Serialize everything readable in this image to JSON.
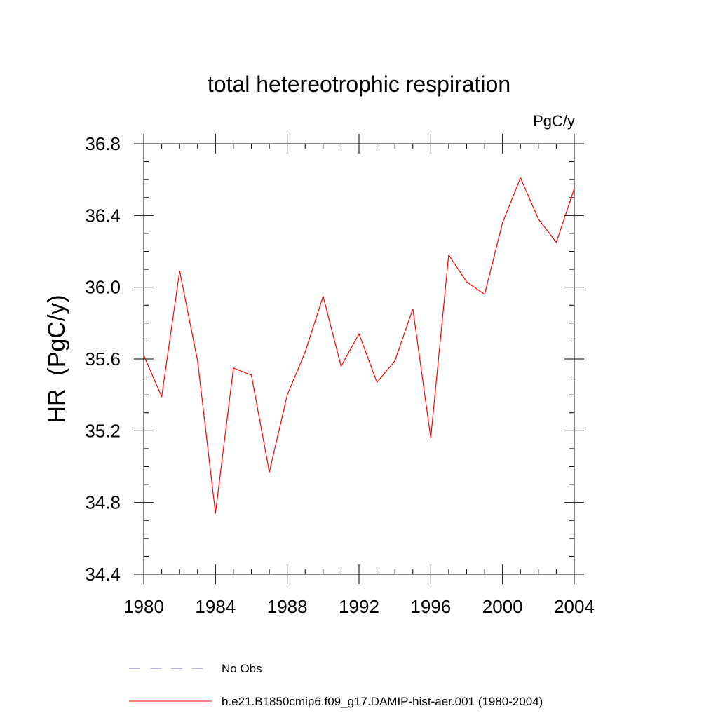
{
  "chart_data": {
    "type": "line",
    "title": "total hetereotrophic respiration",
    "units": "PgC/y",
    "xlabel": "",
    "ylabel": "HR  (PgC/y)",
    "xlim": [
      1980,
      2004
    ],
    "ylim": [
      34.4,
      36.8
    ],
    "x_ticks": [
      1980,
      1984,
      1988,
      1992,
      1996,
      2000,
      2004
    ],
    "x_tick_labels": [
      "1980",
      "1984",
      "1988",
      "1992",
      "1996",
      "2000",
      "2004"
    ],
    "y_ticks": [
      34.4,
      34.8,
      35.2,
      35.6,
      36.0,
      36.4,
      36.8
    ],
    "y_tick_labels": [
      "34.4",
      "34.8",
      "35.2",
      "35.6",
      "36.0",
      "36.4",
      "36.8"
    ],
    "x_minor_step": 1,
    "y_minor_step": 0.1,
    "grid": false,
    "legend_placement": "bottom",
    "series": [
      {
        "name": "b.e21.B1850cmip6.f09_g17.DAMIP-hist-aer.001 (1980-2004)",
        "color": "#ff0000",
        "dash": "solid",
        "x": [
          1980,
          1981,
          1982,
          1983,
          1984,
          1985,
          1986,
          1987,
          1988,
          1989,
          1990,
          1991,
          1992,
          1993,
          1994,
          1995,
          1996,
          1997,
          1998,
          1999,
          2000,
          2001,
          2002,
          2003,
          2004
        ],
        "values": [
          35.62,
          35.39,
          36.09,
          35.59,
          34.74,
          35.55,
          35.51,
          34.97,
          35.4,
          35.64,
          35.95,
          35.56,
          35.74,
          35.47,
          35.59,
          35.88,
          35.16,
          36.18,
          36.03,
          35.96,
          36.36,
          36.61,
          36.38,
          36.25,
          36.55
        ]
      }
    ],
    "legend": [
      {
        "label": "No Obs",
        "color": "#7b68b5",
        "dash": "dashed"
      },
      {
        "label": "b.e21.B1850cmip6.f09_g17.DAMIP-hist-aer.001 (1980-2004)",
        "color": "#ff0000",
        "dash": "solid"
      }
    ]
  }
}
